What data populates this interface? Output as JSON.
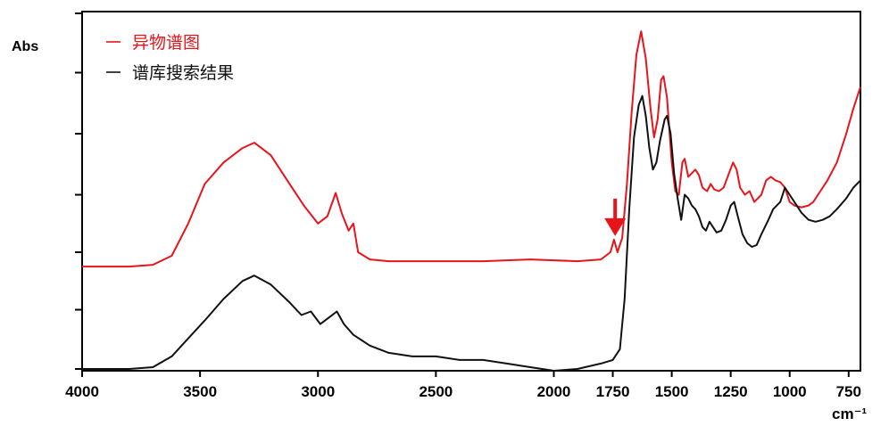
{
  "chart_data": {
    "type": "line",
    "title": "",
    "ylabel": "Abs",
    "xlabel": "cm⁻¹",
    "xlim": [
      4000,
      700
    ],
    "ylim": [
      0,
      1
    ],
    "x_reversed": true,
    "grid": false,
    "legend_position": "top-left",
    "x_ticks": [
      4000,
      3500,
      3000,
      2500,
      2000,
      1750,
      1500,
      1250,
      1000,
      750
    ],
    "x_tick_labels": [
      "4000",
      "3500",
      "3000",
      "2500",
      "2000",
      "1750",
      "1500",
      "1250",
      "1000",
      "750"
    ],
    "y_ticks": [
      0.005,
      0.17,
      0.33,
      0.49,
      0.66,
      0.83,
      0.995
    ],
    "series": [
      {
        "name": "异物谱图",
        "color": "#e8141b",
        "points": [
          [
            4000,
            0.29
          ],
          [
            3800,
            0.29
          ],
          [
            3700,
            0.295
          ],
          [
            3620,
            0.32
          ],
          [
            3550,
            0.41
          ],
          [
            3480,
            0.52
          ],
          [
            3400,
            0.58
          ],
          [
            3320,
            0.62
          ],
          [
            3270,
            0.635
          ],
          [
            3200,
            0.6
          ],
          [
            3120,
            0.52
          ],
          [
            3060,
            0.46
          ],
          [
            3000,
            0.41
          ],
          [
            2960,
            0.43
          ],
          [
            2925,
            0.495
          ],
          [
            2900,
            0.44
          ],
          [
            2870,
            0.39
          ],
          [
            2850,
            0.41
          ],
          [
            2830,
            0.33
          ],
          [
            2780,
            0.31
          ],
          [
            2700,
            0.305
          ],
          [
            2500,
            0.305
          ],
          [
            2300,
            0.305
          ],
          [
            2100,
            0.31
          ],
          [
            1900,
            0.305
          ],
          [
            1800,
            0.31
          ],
          [
            1760,
            0.33
          ],
          [
            1745,
            0.365
          ],
          [
            1730,
            0.33
          ],
          [
            1710,
            0.37
          ],
          [
            1690,
            0.52
          ],
          [
            1670,
            0.72
          ],
          [
            1650,
            0.88
          ],
          [
            1630,
            0.945
          ],
          [
            1610,
            0.87
          ],
          [
            1590,
            0.73
          ],
          [
            1575,
            0.65
          ],
          [
            1560,
            0.7
          ],
          [
            1545,
            0.81
          ],
          [
            1535,
            0.82
          ],
          [
            1520,
            0.76
          ],
          [
            1500,
            0.58
          ],
          [
            1485,
            0.5
          ],
          [
            1470,
            0.49
          ],
          [
            1455,
            0.58
          ],
          [
            1445,
            0.59
          ],
          [
            1430,
            0.54
          ],
          [
            1415,
            0.55
          ],
          [
            1400,
            0.56
          ],
          [
            1385,
            0.545
          ],
          [
            1370,
            0.51
          ],
          [
            1350,
            0.5
          ],
          [
            1335,
            0.52
          ],
          [
            1320,
            0.505
          ],
          [
            1300,
            0.5
          ],
          [
            1280,
            0.51
          ],
          [
            1260,
            0.545
          ],
          [
            1240,
            0.58
          ],
          [
            1225,
            0.56
          ],
          [
            1210,
            0.51
          ],
          [
            1190,
            0.49
          ],
          [
            1170,
            0.5
          ],
          [
            1150,
            0.47
          ],
          [
            1120,
            0.49
          ],
          [
            1100,
            0.53
          ],
          [
            1080,
            0.54
          ],
          [
            1060,
            0.53
          ],
          [
            1040,
            0.525
          ],
          [
            1020,
            0.51
          ],
          [
            1000,
            0.47
          ],
          [
            980,
            0.46
          ],
          [
            950,
            0.455
          ],
          [
            920,
            0.46
          ],
          [
            900,
            0.47
          ],
          [
            870,
            0.5
          ],
          [
            840,
            0.53
          ],
          [
            800,
            0.58
          ],
          [
            760,
            0.66
          ],
          [
            730,
            0.73
          ],
          [
            700,
            0.79
          ]
        ]
      },
      {
        "name": "谱库搜索结果",
        "color": "#111111",
        "points": [
          [
            4000,
            0.005
          ],
          [
            3800,
            0.005
          ],
          [
            3700,
            0.01
          ],
          [
            3620,
            0.04
          ],
          [
            3550,
            0.09
          ],
          [
            3480,
            0.14
          ],
          [
            3400,
            0.2
          ],
          [
            3320,
            0.25
          ],
          [
            3270,
            0.265
          ],
          [
            3200,
            0.24
          ],
          [
            3120,
            0.19
          ],
          [
            3070,
            0.155
          ],
          [
            3030,
            0.165
          ],
          [
            2990,
            0.13
          ],
          [
            2950,
            0.15
          ],
          [
            2920,
            0.165
          ],
          [
            2890,
            0.13
          ],
          [
            2850,
            0.1
          ],
          [
            2780,
            0.07
          ],
          [
            2700,
            0.05
          ],
          [
            2600,
            0.04
          ],
          [
            2500,
            0.04
          ],
          [
            2400,
            0.03
          ],
          [
            2300,
            0.03
          ],
          [
            2200,
            0.02
          ],
          [
            2100,
            0.01
          ],
          [
            2000,
            0.0
          ],
          [
            1900,
            0.005
          ],
          [
            1800,
            0.02
          ],
          [
            1750,
            0.03
          ],
          [
            1720,
            0.06
          ],
          [
            1700,
            0.2
          ],
          [
            1680,
            0.45
          ],
          [
            1660,
            0.65
          ],
          [
            1640,
            0.74
          ],
          [
            1625,
            0.765
          ],
          [
            1610,
            0.71
          ],
          [
            1595,
            0.62
          ],
          [
            1580,
            0.56
          ],
          [
            1565,
            0.58
          ],
          [
            1550,
            0.64
          ],
          [
            1530,
            0.7
          ],
          [
            1520,
            0.71
          ],
          [
            1505,
            0.66
          ],
          [
            1490,
            0.55
          ],
          [
            1475,
            0.48
          ],
          [
            1460,
            0.42
          ],
          [
            1445,
            0.49
          ],
          [
            1430,
            0.48
          ],
          [
            1415,
            0.46
          ],
          [
            1400,
            0.45
          ],
          [
            1385,
            0.43
          ],
          [
            1370,
            0.4
          ],
          [
            1355,
            0.39
          ],
          [
            1340,
            0.415
          ],
          [
            1325,
            0.4
          ],
          [
            1310,
            0.385
          ],
          [
            1290,
            0.39
          ],
          [
            1270,
            0.42
          ],
          [
            1250,
            0.46
          ],
          [
            1235,
            0.47
          ],
          [
            1220,
            0.43
          ],
          [
            1200,
            0.38
          ],
          [
            1180,
            0.355
          ],
          [
            1160,
            0.345
          ],
          [
            1140,
            0.35
          ],
          [
            1120,
            0.38
          ],
          [
            1090,
            0.42
          ],
          [
            1070,
            0.45
          ],
          [
            1040,
            0.47
          ],
          [
            1020,
            0.51
          ],
          [
            1000,
            0.49
          ],
          [
            980,
            0.47
          ],
          [
            950,
            0.44
          ],
          [
            920,
            0.42
          ],
          [
            890,
            0.415
          ],
          [
            860,
            0.42
          ],
          [
            830,
            0.43
          ],
          [
            800,
            0.45
          ],
          [
            760,
            0.48
          ],
          [
            730,
            0.51
          ],
          [
            700,
            0.53
          ]
        ]
      }
    ],
    "annotations": [
      {
        "type": "arrow-down",
        "x": 1740,
        "y": 0.375,
        "color": "#e8141b"
      }
    ]
  }
}
